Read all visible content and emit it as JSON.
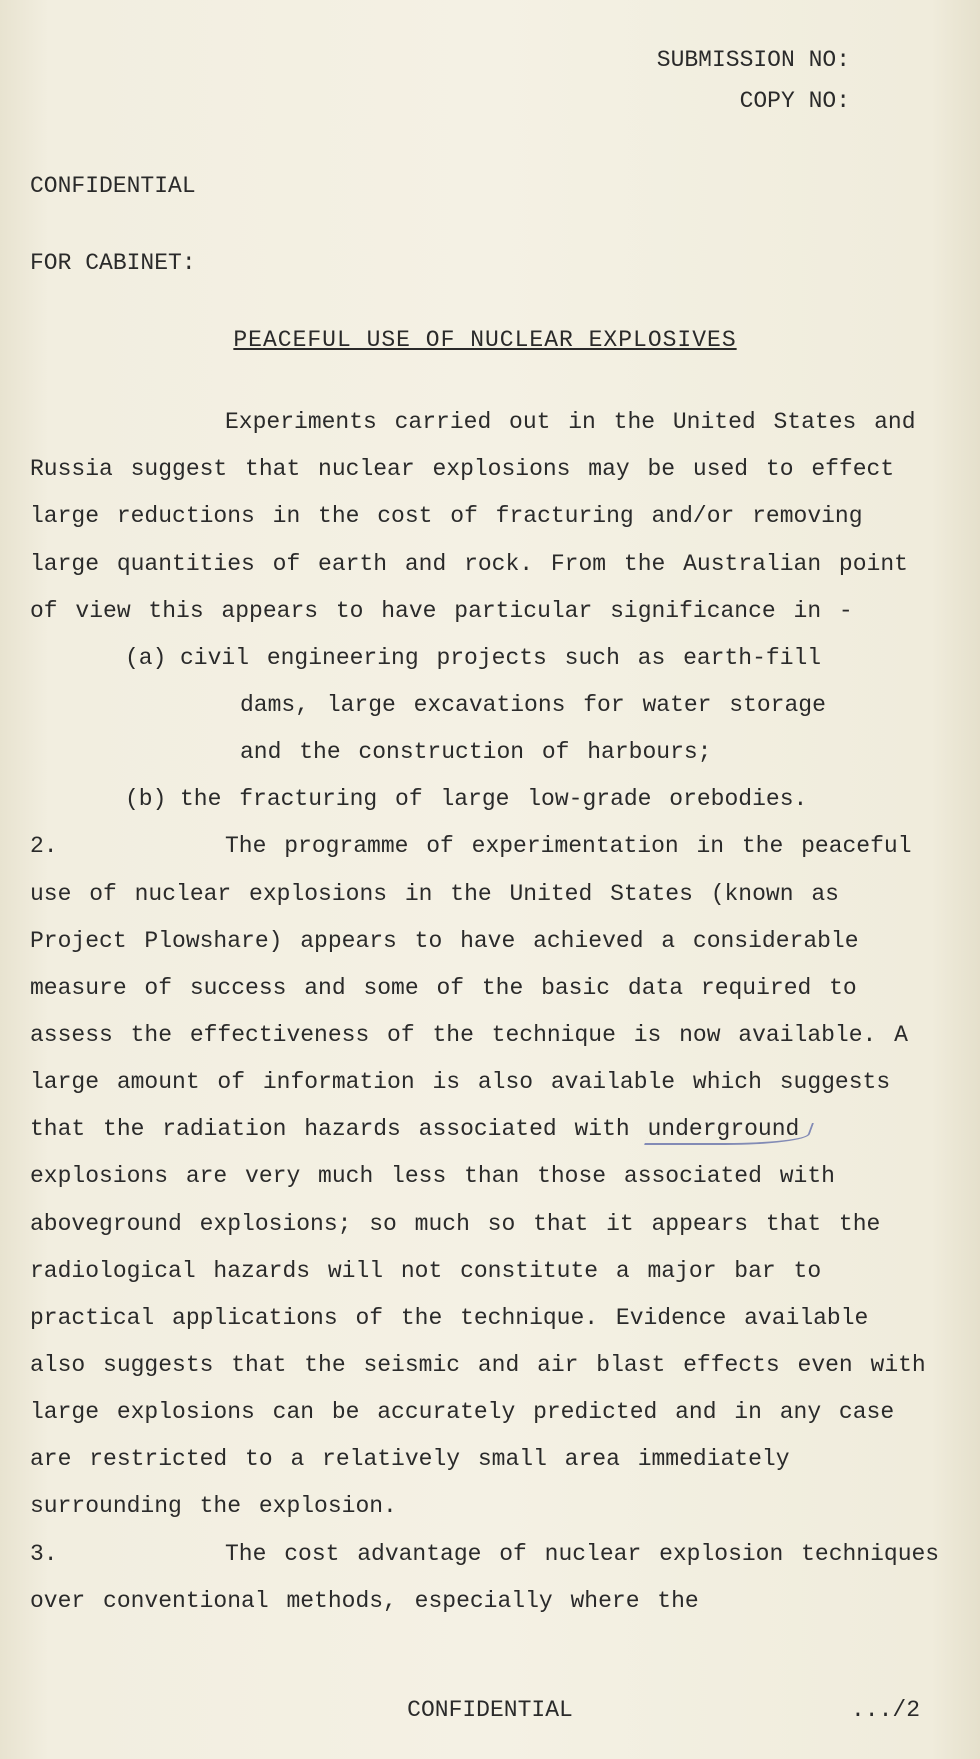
{
  "header": {
    "submission_label": "SUBMISSION NO:",
    "copy_label": "COPY NO:",
    "classification": "CONFIDENTIAL",
    "recipient": "FOR CABINET:"
  },
  "title": "PEACEFUL USE OF NUCLEAR EXPLOSIVES",
  "para1": {
    "text": "Experiments carried out in the United States and Russia suggest that nuclear explosions may be used to effect large reductions in the cost of fracturing and/or removing large quantities of earth and rock.  From the Australian point of view this appears to have particular significance in -"
  },
  "list": {
    "a_marker": "(a)",
    "a_line1": "civil engineering projects such as earth-fill",
    "a_line2": "dams, large excavations for water storage",
    "a_line3": "and the construction of harbours;",
    "b_marker": "(b)",
    "b_line1": "the fracturing of large low-grade orebodies."
  },
  "para2": {
    "num": "2.",
    "text_before": "The programme of experimentation in the peaceful use of nuclear explosions in the United States (known as Project Plowshare) appears to have achieved a considerable measure of success and some of the basic data required to assess the effectiveness of the technique is now available. A large amount of information is also available which suggests that the radiation hazards associated with ",
    "annotated_word": "underground",
    "text_after": " explosions are very much less than those associated with aboveground explosions; so much so that it appears that the radiological hazards will not constitute a major bar to practical applications of the technique.  Evidence available also suggests that the seismic and air blast effects even with large explosions can be accurately predicted and in any case are restricted to a relatively small area immediately surrounding the explosion."
  },
  "para3": {
    "num": "3.",
    "text": "The cost advantage of nuclear explosion techniques over conventional methods, especially where the"
  },
  "footer": {
    "classification": "CONFIDENTIAL",
    "page_cont": ".../2"
  }
}
